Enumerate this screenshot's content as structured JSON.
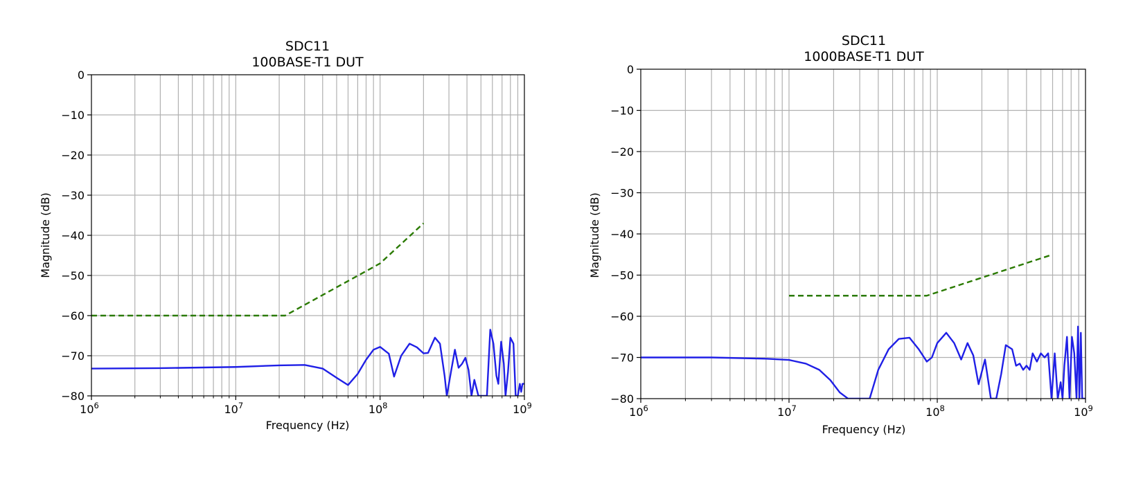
{
  "chart_data": [
    {
      "type": "line",
      "title": "SDC11",
      "subtitle": "100BASE-T1 DUT",
      "xlabel": "Frequency (Hz)",
      "ylabel": "Magnitude (dB)",
      "xscale": "log",
      "xlim": [
        1000000,
        1000000000
      ],
      "ylim": [
        -80,
        0
      ],
      "yticks": [
        0,
        -10,
        -20,
        -30,
        -40,
        -50,
        -60,
        -70,
        -80
      ],
      "yticklabels": [
        "0",
        "−10",
        "−20",
        "−30",
        "−40",
        "−50",
        "−60",
        "−70",
        "−80"
      ],
      "xticks": [
        {
          "base": "10",
          "exp": "6"
        },
        {
          "base": "10",
          "exp": "7"
        },
        {
          "base": "10",
          "exp": "8"
        },
        {
          "base": "10",
          "exp": "9"
        }
      ],
      "grid": true,
      "series": [
        {
          "style": "solid",
          "color": "#1f1fe6",
          "x": [
            1000000,
            3000000,
            10000000,
            20000000,
            30000000,
            40000000,
            50000000,
            60000000,
            70000000,
            80000000,
            90000000,
            100000000,
            115000000,
            125000000,
            140000000,
            160000000,
            180000000,
            200000000,
            215000000,
            240000000,
            260000000,
            280000000,
            290000000,
            310000000,
            330000000,
            350000000,
            370000000,
            390000000,
            410000000,
            430000000,
            450000000,
            480000000,
            510000000,
            550000000,
            580000000,
            610000000,
            640000000,
            660000000,
            690000000,
            720000000,
            740000000,
            770000000,
            800000000,
            840000000,
            870000000,
            900000000,
            930000000,
            950000000,
            970000000,
            990000000,
            1000000000
          ],
          "y": [
            -73.2,
            -73.1,
            -72.8,
            -72.4,
            -72.3,
            -73.2,
            -75.5,
            -77.3,
            -74.5,
            -71,
            -68.5,
            -67.8,
            -69.5,
            -75.2,
            -70,
            -67,
            -67.9,
            -69.4,
            -69.3,
            -65.5,
            -67,
            -75,
            -80,
            -74,
            -68.5,
            -73,
            -72,
            -70.5,
            -73.5,
            -80,
            -76,
            -80,
            -80,
            -80,
            -63.5,
            -67,
            -75,
            -77,
            -66.5,
            -72,
            -80,
            -74,
            -65.5,
            -67,
            -80,
            -80,
            -77,
            -79,
            -77,
            -77,
            -77
          ]
        },
        {
          "style": "dashed",
          "color": "#2a7a00",
          "x": [
            1000000,
            22000000,
            100000000,
            200000000
          ],
          "y": [
            -60,
            -60,
            -47,
            -37
          ]
        }
      ]
    },
    {
      "type": "line",
      "title": "SDC11",
      "subtitle": "1000BASE-T1 DUT",
      "xlabel": "Frequency (Hz)",
      "ylabel": "Magnitude (dB)",
      "xscale": "log",
      "xlim": [
        1000000,
        1000000000
      ],
      "ylim": [
        -80,
        0
      ],
      "yticks": [
        0,
        -10,
        -20,
        -30,
        -40,
        -50,
        -60,
        -70,
        -80
      ],
      "yticklabels": [
        "0",
        "−10",
        "−20",
        "−30",
        "−40",
        "−50",
        "−60",
        "−70",
        "−80"
      ],
      "xticks": [
        {
          "base": "10",
          "exp": "6"
        },
        {
          "base": "10",
          "exp": "7"
        },
        {
          "base": "10",
          "exp": "8"
        },
        {
          "base": "10",
          "exp": "9"
        }
      ],
      "grid": true,
      "series": [
        {
          "style": "solid",
          "color": "#1f1fe6",
          "x": [
            1000000,
            3000000,
            7000000,
            10000000,
            13000000,
            16000000,
            19000000,
            22000000,
            25000000,
            28000000,
            35000000,
            40000000,
            47000000,
            55000000,
            65000000,
            75000000,
            85000000,
            92000000,
            100000000,
            115000000,
            130000000,
            145000000,
            160000000,
            175000000,
            190000000,
            210000000,
            230000000,
            250000000,
            270000000,
            290000000,
            320000000,
            340000000,
            360000000,
            380000000,
            400000000,
            420000000,
            440000000,
            470000000,
            500000000,
            530000000,
            560000000,
            590000000,
            620000000,
            650000000,
            680000000,
            700000000,
            720000000,
            750000000,
            780000000,
            810000000,
            840000000,
            870000000,
            890000000,
            910000000,
            930000000,
            950000000,
            970000000,
            990000000,
            1000000000
          ],
          "y": [
            -70,
            -70,
            -70.3,
            -70.6,
            -71.5,
            -73,
            -75.5,
            -78.5,
            -80,
            -80,
            -80,
            -73,
            -68,
            -65.5,
            -65.2,
            -68,
            -71,
            -70,
            -66.5,
            -64,
            -66.5,
            -70.5,
            -66.5,
            -69.5,
            -76.5,
            -70.5,
            -80,
            -80,
            -74,
            -67,
            -68,
            -72,
            -71.5,
            -73,
            -72,
            -73,
            -69,
            -71,
            -69,
            -70,
            -69,
            -80,
            -69,
            -80,
            -76,
            -80,
            -72,
            -65,
            -80,
            -65,
            -69,
            -80,
            -62.5,
            -80,
            -64,
            -80,
            -80,
            -80,
            -80
          ]
        },
        {
          "style": "dashed",
          "color": "#2a7a00",
          "x": [
            10000000,
            85000000,
            600000000
          ],
          "y": [
            -55,
            -55,
            -45
          ]
        }
      ]
    }
  ]
}
